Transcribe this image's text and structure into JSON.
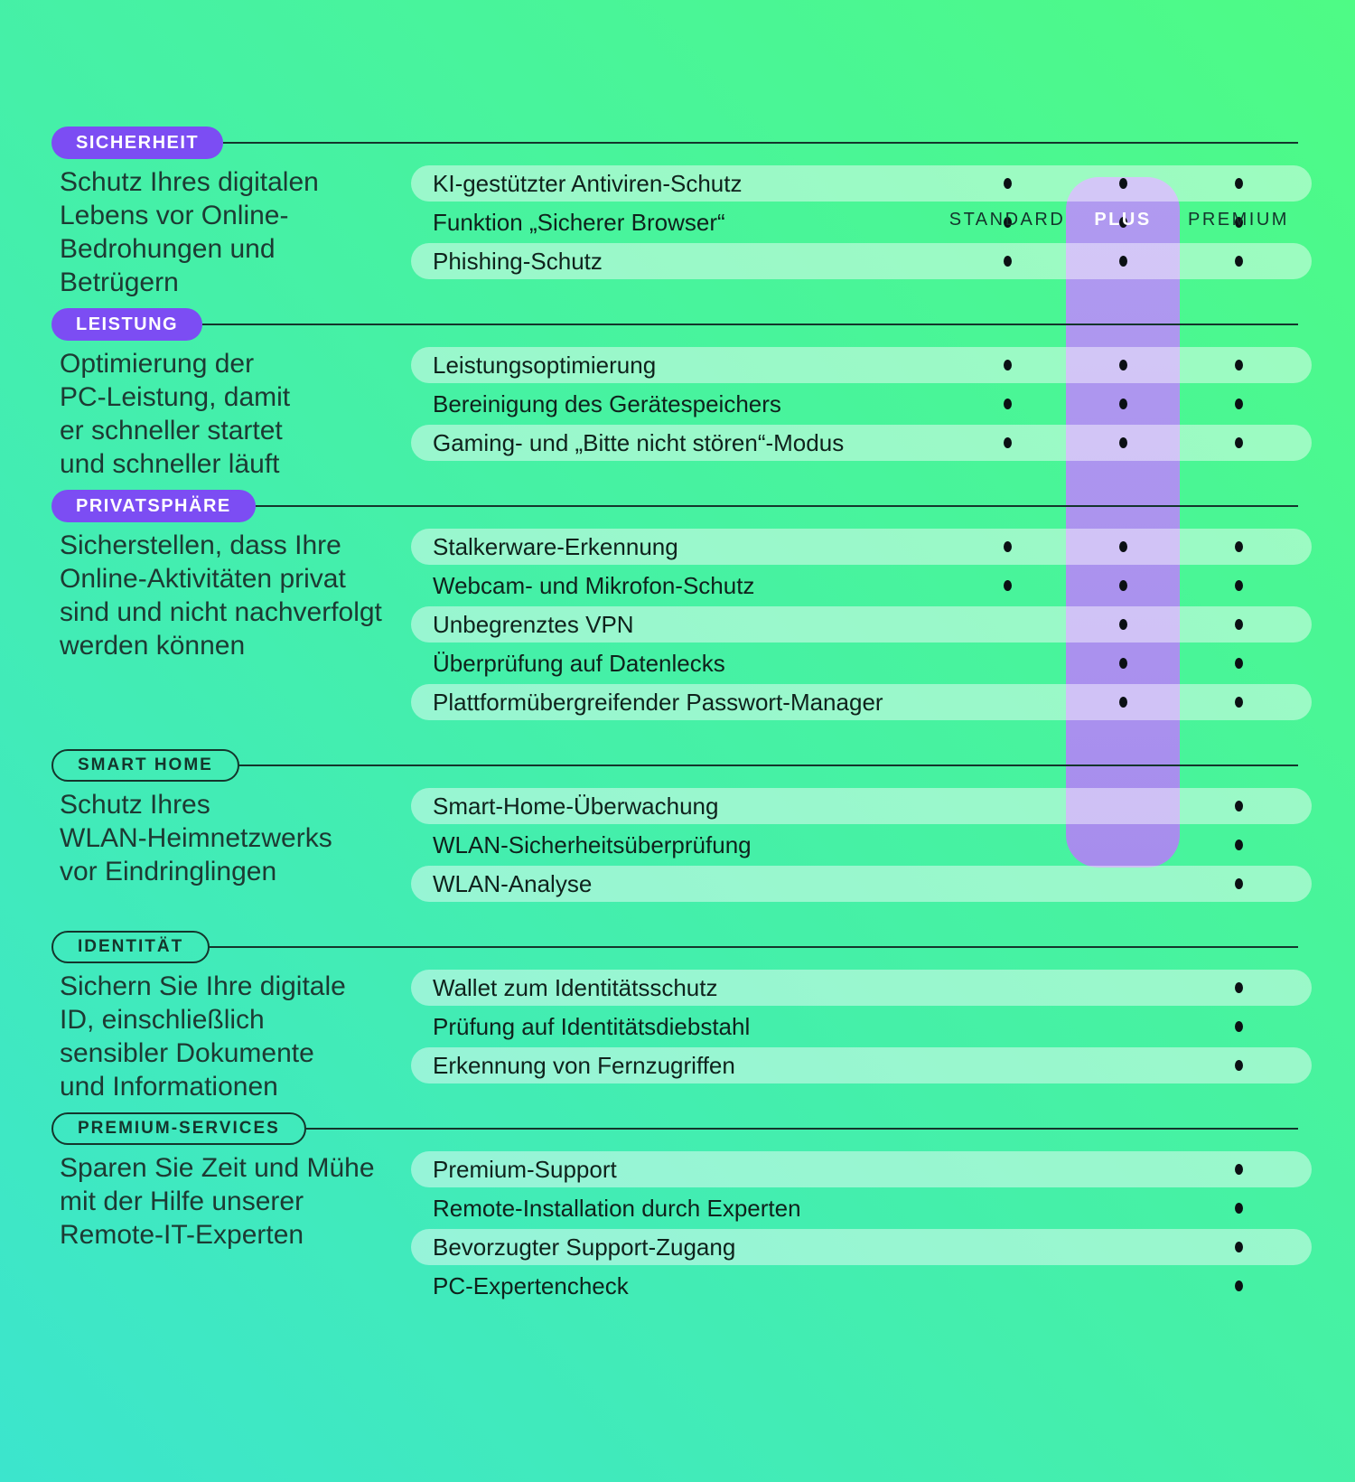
{
  "colors": {
    "background_top": "#4efb85",
    "background_bottom": "#3ce5cd",
    "plus_band": "#a78ded",
    "badge_purple": "#7c4df3",
    "ink": "#14352c",
    "row_pill": "rgba(255,255,255,0.45)",
    "dot": "#0b1014"
  },
  "header": {
    "columns": [
      {
        "id": "standard",
        "label": "STANDARD",
        "highlighted": false
      },
      {
        "id": "plus",
        "label": "PLUS",
        "highlighted": true
      },
      {
        "id": "premium",
        "label": "PREMIUM",
        "highlighted": false
      }
    ]
  },
  "sections": [
    {
      "id": "sicherheit",
      "badge": "SICHERHEIT",
      "badge_style": "solid",
      "description": "Schutz Ihres digitalen\nLebens vor Online-\nBedrohungen und\nBetrügern",
      "features": [
        {
          "label": "KI-gestützter Antiviren-Schutz",
          "availability": [
            true,
            true,
            true
          ]
        },
        {
          "label": "Funktion „Sicherer Browser“",
          "availability": [
            true,
            true,
            true
          ]
        },
        {
          "label": "Phishing-Schutz",
          "availability": [
            true,
            true,
            true
          ]
        }
      ]
    },
    {
      "id": "leistung",
      "badge": "LEISTUNG",
      "badge_style": "solid",
      "description": "Optimierung der\nPC-Leistung, damit\ner schneller startet\nund schneller läuft",
      "features": [
        {
          "label": "Leistungsoptimierung",
          "availability": [
            true,
            true,
            true
          ]
        },
        {
          "label": "Bereinigung des Gerätespeichers",
          "availability": [
            true,
            true,
            true
          ]
        },
        {
          "label": "Gaming- und „Bitte nicht stören“-Modus",
          "availability": [
            true,
            true,
            true
          ]
        }
      ]
    },
    {
      "id": "privatsphaere",
      "badge": "PRIVATSPHÄRE",
      "badge_style": "solid",
      "description": "Sicherstellen, dass Ihre\nOnline-Aktivitäten privat\nsind und nicht nachverfolgt\nwerden können",
      "features": [
        {
          "label": "Stalkerware-Erkennung",
          "availability": [
            true,
            true,
            true
          ]
        },
        {
          "label": "Webcam- und Mikrofon-Schutz",
          "availability": [
            true,
            true,
            true
          ]
        },
        {
          "label": "Unbegrenztes VPN",
          "availability": [
            false,
            true,
            true
          ]
        },
        {
          "label": "Überprüfung auf Datenlecks",
          "availability": [
            false,
            true,
            true
          ]
        },
        {
          "label": "Plattformübergreifender Passwort-Manager",
          "availability": [
            false,
            true,
            true
          ]
        }
      ]
    },
    {
      "id": "smart-home",
      "badge": "SMART HOME",
      "badge_style": "outline",
      "description": "Schutz Ihres\nWLAN-Heimnetzwerks\nvor Eindringlingen",
      "features": [
        {
          "label": "Smart-Home-Überwachung",
          "availability": [
            false,
            false,
            true
          ]
        },
        {
          "label": "WLAN-Sicherheitsüberprüfung",
          "availability": [
            false,
            false,
            true
          ]
        },
        {
          "label": "WLAN-Analyse",
          "availability": [
            false,
            false,
            true
          ]
        }
      ]
    },
    {
      "id": "identitaet",
      "badge": "IDENTITÄT",
      "badge_style": "outline",
      "description": "Sichern Sie Ihre digitale\nID, einschließlich\nsensibler Dokumente\nund Informationen",
      "features": [
        {
          "label": "Wallet zum Identitätsschutz",
          "availability": [
            false,
            false,
            true
          ]
        },
        {
          "label": "Prüfung auf Identitätsdiebstahl",
          "availability": [
            false,
            false,
            true
          ]
        },
        {
          "label": "Erkennung von Fernzugriffen",
          "availability": [
            false,
            false,
            true
          ]
        }
      ]
    },
    {
      "id": "premium-services",
      "badge": "PREMIUM-SERVICES",
      "badge_style": "outline",
      "description": "Sparen Sie Zeit und Mühe\nmit der Hilfe unserer\nRemote-IT-Experten",
      "features": [
        {
          "label": "Premium-Support",
          "availability": [
            false,
            false,
            true
          ]
        },
        {
          "label": "Remote-Installation durch Experten",
          "availability": [
            false,
            false,
            true
          ]
        },
        {
          "label": "Bevorzugter Support-Zugang",
          "availability": [
            false,
            false,
            true
          ]
        },
        {
          "label": "PC-Expertencheck",
          "availability": [
            false,
            false,
            true
          ]
        }
      ]
    }
  ]
}
